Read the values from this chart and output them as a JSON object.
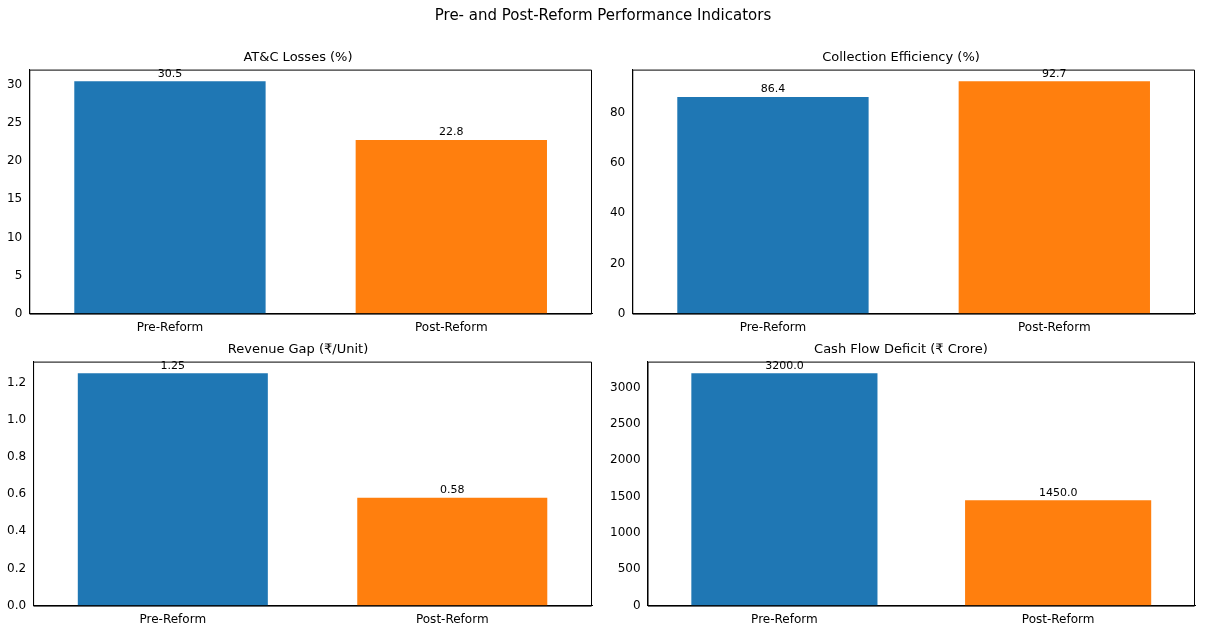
{
  "chart_data": [
    {
      "type": "bar",
      "title": "AT&C Losses (%)",
      "annotations": [
        "Pre- and Post-Reform Performance Indicators"
      ],
      "categories": [
        "Pre-Reform",
        "Post-Reform"
      ],
      "values": [
        30.5,
        22.8
      ],
      "colors": [
        "#1f77b4",
        "#ff7f0e"
      ],
      "value_labels": [
        "30.5",
        "22.8"
      ],
      "ylim": [
        0,
        32.025
      ],
      "yticks": [
        0,
        5,
        10,
        15,
        20,
        25,
        30
      ]
    },
    {
      "type": "bar",
      "title": "Collection Efficiency (%)",
      "categories": [
        "Pre-Reform",
        "Post-Reform"
      ],
      "values": [
        86.4,
        92.7
      ],
      "colors": [
        "#1f77b4",
        "#ff7f0e"
      ],
      "value_labels": [
        "86.4",
        "92.7"
      ],
      "ylim": [
        0,
        97.335
      ],
      "yticks": [
        0,
        20,
        40,
        60,
        80
      ]
    },
    {
      "type": "bar",
      "title": "Revenue Gap (₹/Unit)",
      "categories": [
        "Pre-Reform",
        "Post-Reform"
      ],
      "values": [
        1.25,
        0.58
      ],
      "colors": [
        "#1f77b4",
        "#ff7f0e"
      ],
      "value_labels": [
        "1.25",
        "0.58"
      ],
      "ylim": [
        0,
        1.3125
      ],
      "yticks": [
        {
          "value": 0,
          "label": "0.0"
        },
        {
          "value": 0.2,
          "label": "0.2"
        },
        {
          "value": 0.4,
          "label": "0.4"
        },
        {
          "value": 0.6,
          "label": "0.6"
        },
        {
          "value": 0.8,
          "label": "0.8"
        },
        {
          "value": 1,
          "label": "1.0"
        },
        {
          "value": 1.2,
          "label": "1.2"
        }
      ]
    },
    {
      "type": "bar",
      "title": "Cash Flow Deficit (₹ Crore)",
      "categories": [
        "Pre-Reform",
        "Post-Reform"
      ],
      "values": [
        3200,
        1450
      ],
      "colors": [
        "#1f77b4",
        "#ff7f0e"
      ],
      "value_labels": [
        "3200.0",
        "1450.0"
      ],
      "ylim": [
        0,
        3360
      ],
      "yticks": [
        0,
        500,
        1000,
        1500,
        2000,
        2500,
        3000
      ]
    }
  ]
}
